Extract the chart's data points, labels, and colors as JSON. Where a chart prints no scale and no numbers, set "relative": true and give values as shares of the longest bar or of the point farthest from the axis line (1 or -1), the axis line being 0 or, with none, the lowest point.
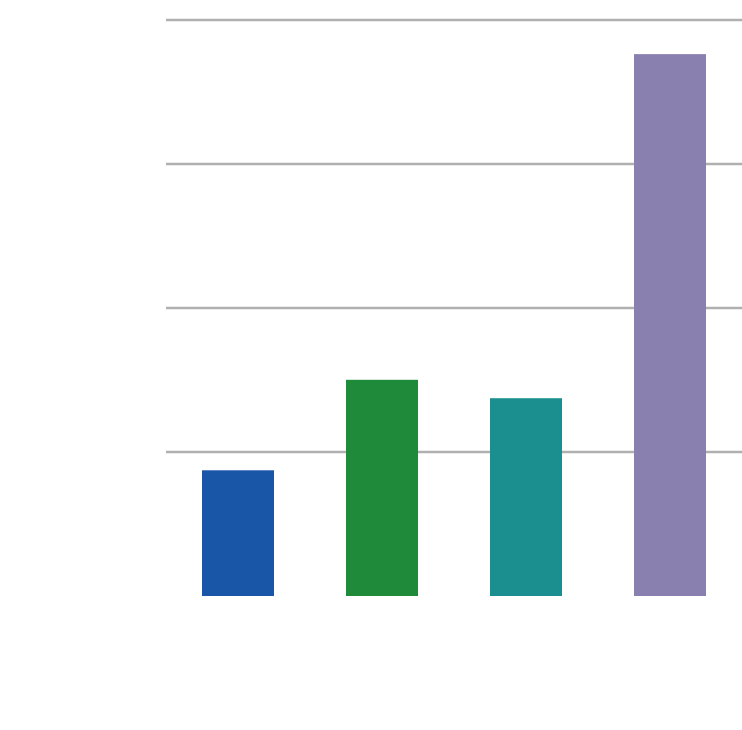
{
  "chart_data": {
    "type": "bar",
    "relative": true,
    "grid": true,
    "categories": [
      null,
      null,
      null,
      null
    ],
    "values": [
      0.232,
      0.399,
      0.365,
      1
    ],
    "colors": [
      "#1a56a8",
      "#1f8a3a",
      "#1b8f8f",
      "#8a80b0"
    ]
  }
}
